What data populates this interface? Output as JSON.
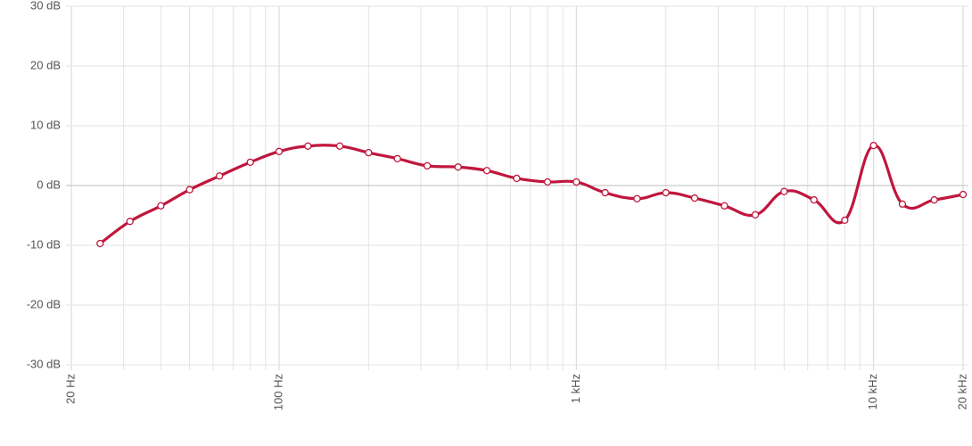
{
  "chart_data": {
    "type": "line",
    "log_x": true,
    "grid": true,
    "color": "#c0163d",
    "x": [
      25,
      31.5,
      40,
      50,
      63,
      80,
      100,
      125,
      160,
      200,
      250,
      315,
      400,
      500,
      630,
      800,
      1000,
      1250,
      1600,
      2000,
      2500,
      3150,
      4000,
      5000,
      6300,
      8000,
      10000,
      12500,
      16000,
      20000
    ],
    "values": [
      -9.7,
      -6.0,
      -3.4,
      -0.7,
      1.6,
      3.9,
      5.7,
      6.6,
      6.6,
      5.5,
      4.5,
      3.3,
      3.1,
      2.5,
      1.2,
      0.6,
      0.6,
      -1.2,
      -2.2,
      -1.2,
      -2.1,
      -3.4,
      -4.9,
      -1.0,
      -2.4,
      -5.8,
      6.7,
      -3.1,
      -2.4,
      -1.5
    ],
    "xlim": [
      20,
      20000
    ],
    "xticks": [
      {
        "value": 20,
        "label": "20 Hz"
      },
      {
        "value": 100,
        "label": "100 Hz"
      },
      {
        "value": 1000,
        "label": "1 kHz"
      },
      {
        "value": 10000,
        "label": "10 kHz"
      },
      {
        "value": 20000,
        "label": "20 kHz"
      }
    ],
    "xminor_ticks": [
      30,
      40,
      50,
      60,
      70,
      80,
      90,
      200,
      300,
      400,
      500,
      600,
      700,
      800,
      900,
      2000,
      3000,
      4000,
      5000,
      6000,
      7000,
      8000,
      9000
    ],
    "ylim": [
      -30,
      30
    ],
    "yticks": [
      {
        "value": 30,
        "label": "30 dB"
      },
      {
        "value": 20,
        "label": "20 dB"
      },
      {
        "value": 10,
        "label": "10 dB"
      },
      {
        "value": 0,
        "label": "0 dB"
      },
      {
        "value": -10,
        "label": "-10 dB"
      },
      {
        "value": -20,
        "label": "-20 dB"
      },
      {
        "value": -30,
        "label": "-30 dB"
      }
    ]
  }
}
